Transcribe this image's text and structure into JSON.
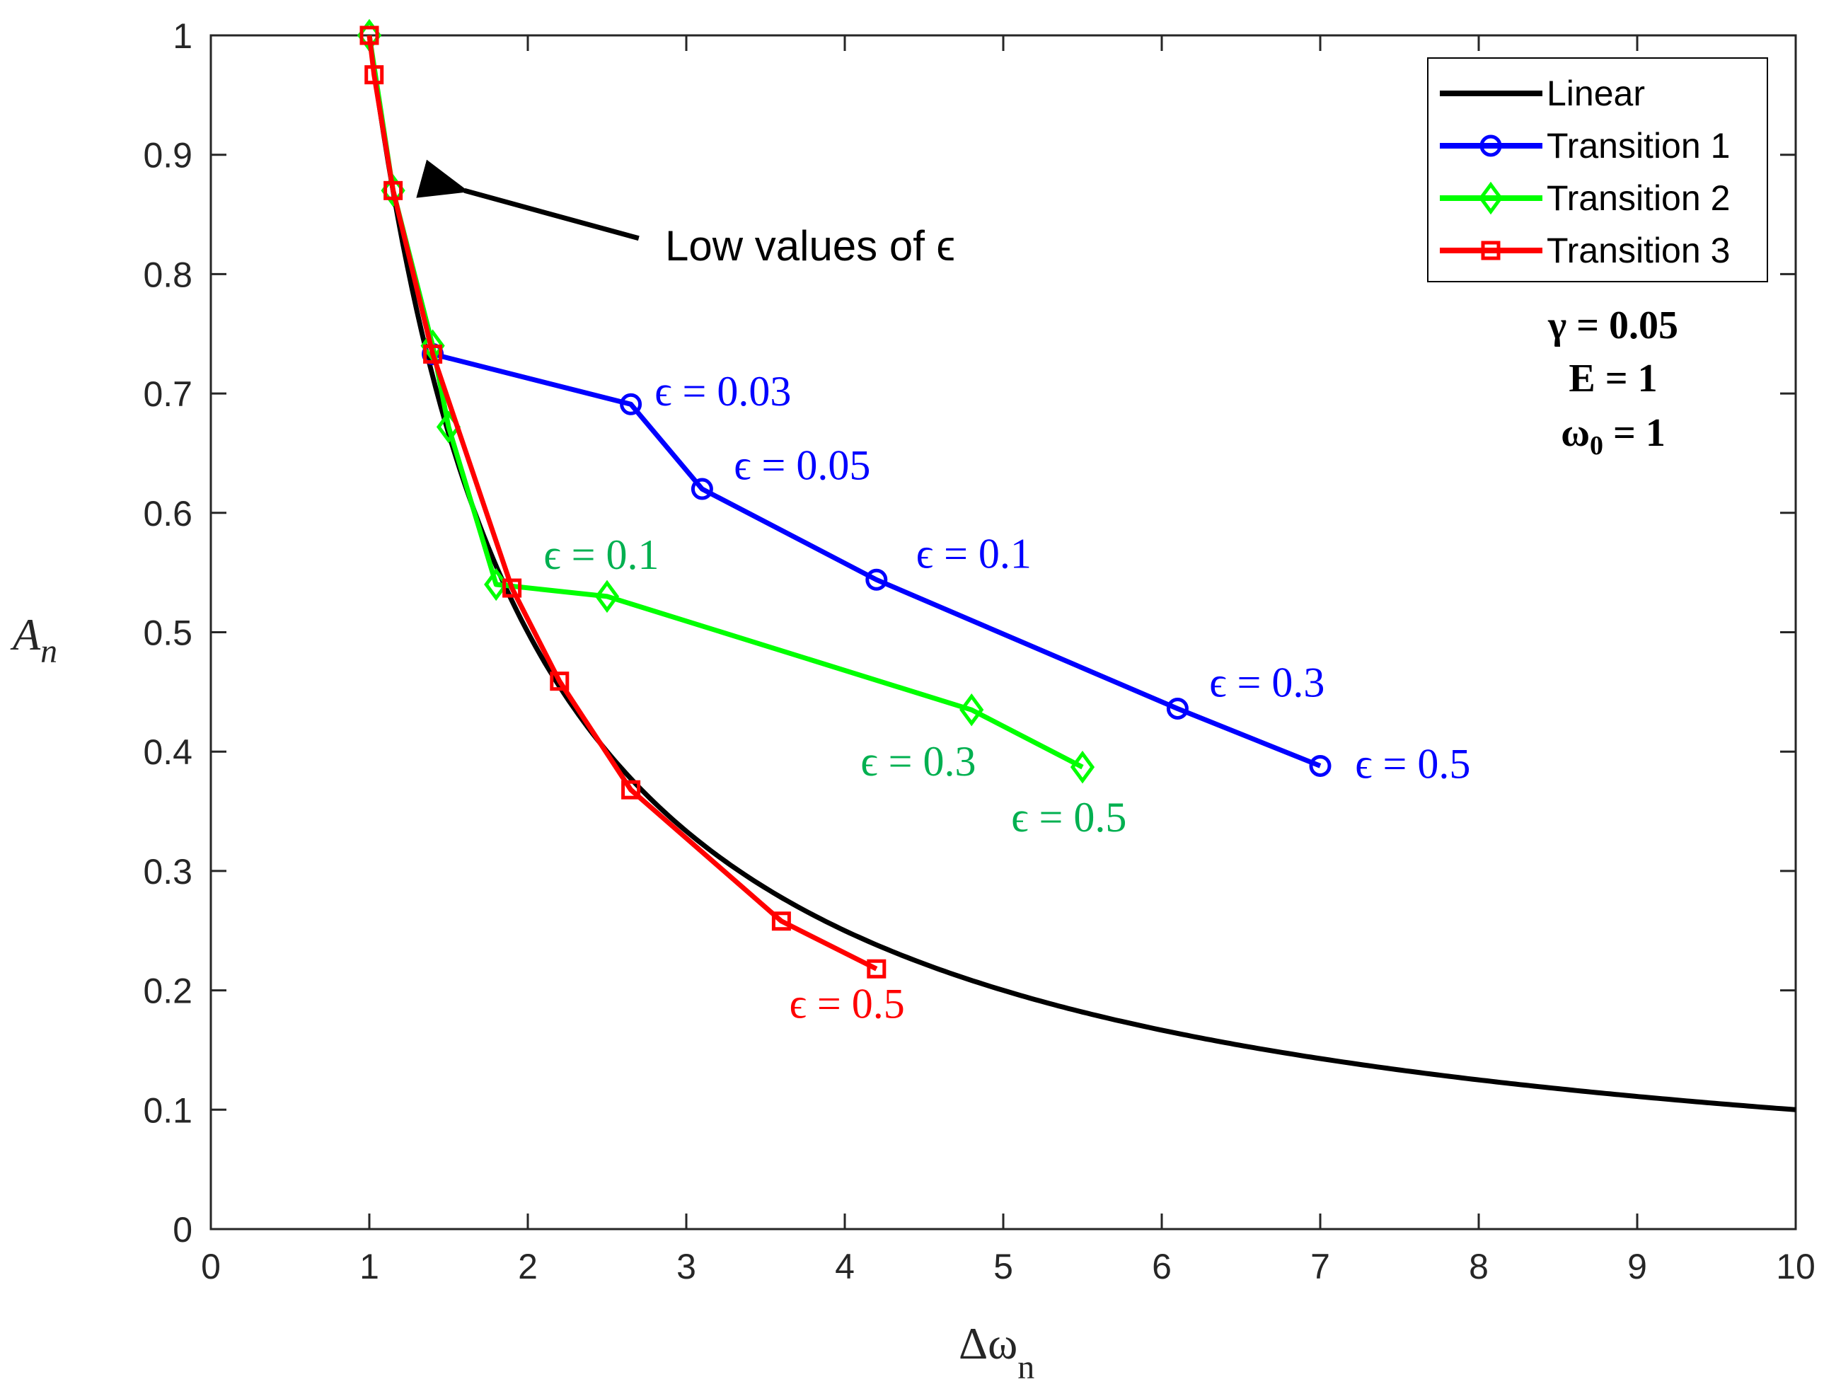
{
  "chart_data": {
    "type": "line",
    "title": "",
    "xlabel": "Δω",
    "xlabel_sub": "n",
    "ylabel": "A",
    "ylabel_sub": "n",
    "xlim": [
      0,
      10
    ],
    "ylim": [
      0,
      1
    ],
    "xticks": [
      0,
      1,
      2,
      3,
      4,
      5,
      6,
      7,
      8,
      9,
      10
    ],
    "yticks": [
      0,
      0.1,
      0.2,
      0.3,
      0.4,
      0.5,
      0.6,
      0.7,
      0.8,
      0.9,
      1
    ],
    "grid": false,
    "legend_position": "top-right",
    "linear": {
      "name": "Linear",
      "color": "#000000",
      "formula": "1/x",
      "x_range": [
        1,
        10
      ]
    },
    "series": [
      {
        "name": "Transition 1",
        "color": "#0000ff",
        "marker": "circle",
        "x": [
          1.4,
          2.65,
          3.1,
          4.2,
          6.1,
          7.0
        ],
        "y": [
          0.733,
          0.691,
          0.62,
          0.544,
          0.436,
          0.388
        ]
      },
      {
        "name": "Transition 2",
        "color": "#00ff00",
        "marker": "diamond",
        "x": [
          1.0,
          1.15,
          1.4,
          1.5,
          1.8,
          2.5,
          4.8,
          5.5
        ],
        "y": [
          1.0,
          0.87,
          0.74,
          0.672,
          0.54,
          0.53,
          0.435,
          0.387
        ]
      },
      {
        "name": "Transition 3",
        "color": "#ff0000",
        "marker": "square",
        "x": [
          1.0,
          1.03,
          1.15,
          1.4,
          1.9,
          2.2,
          2.65,
          3.6,
          4.2
        ],
        "y": [
          1.0,
          0.967,
          0.87,
          0.733,
          0.537,
          0.459,
          0.368,
          0.258,
          0.218
        ]
      }
    ],
    "annotations": [
      {
        "text": "ϵ = 0.03",
        "color": "#0000ff",
        "x": 2.8,
        "y": 0.69
      },
      {
        "text": "ϵ = 0.05",
        "color": "#0000ff",
        "x": 3.3,
        "y": 0.628
      },
      {
        "text": "ϵ = 0.1",
        "color": "#0000ff",
        "x": 4.45,
        "y": 0.554
      },
      {
        "text": "ϵ = 0.3",
        "color": "#0000ff",
        "x": 6.3,
        "y": 0.446
      },
      {
        "text": "ϵ = 0.5",
        "color": "#0000ff",
        "x": 7.22,
        "y": 0.378
      },
      {
        "text": "ϵ = 0.1",
        "color": "#00b050",
        "x": 2.1,
        "y": 0.553
      },
      {
        "text": "ϵ = 0.3",
        "color": "#00b050",
        "x": 4.1,
        "y": 0.38
      },
      {
        "text": "ϵ = 0.5",
        "color": "#00b050",
        "x": 5.05,
        "y": 0.333
      },
      {
        "text": "ϵ = 0.5",
        "color": "#ff0000",
        "x": 3.65,
        "y": 0.177
      }
    ],
    "note": {
      "text": "Low values of ϵ",
      "arrow_from": [
        2.7,
        0.83
      ],
      "arrow_to": [
        1.6,
        0.87
      ]
    },
    "params": {
      "gamma": "γ = 0.05",
      "E": "E = 1",
      "omega0": "ω",
      "omega0_sub": "0",
      "omega0_rest": " = 1"
    }
  }
}
